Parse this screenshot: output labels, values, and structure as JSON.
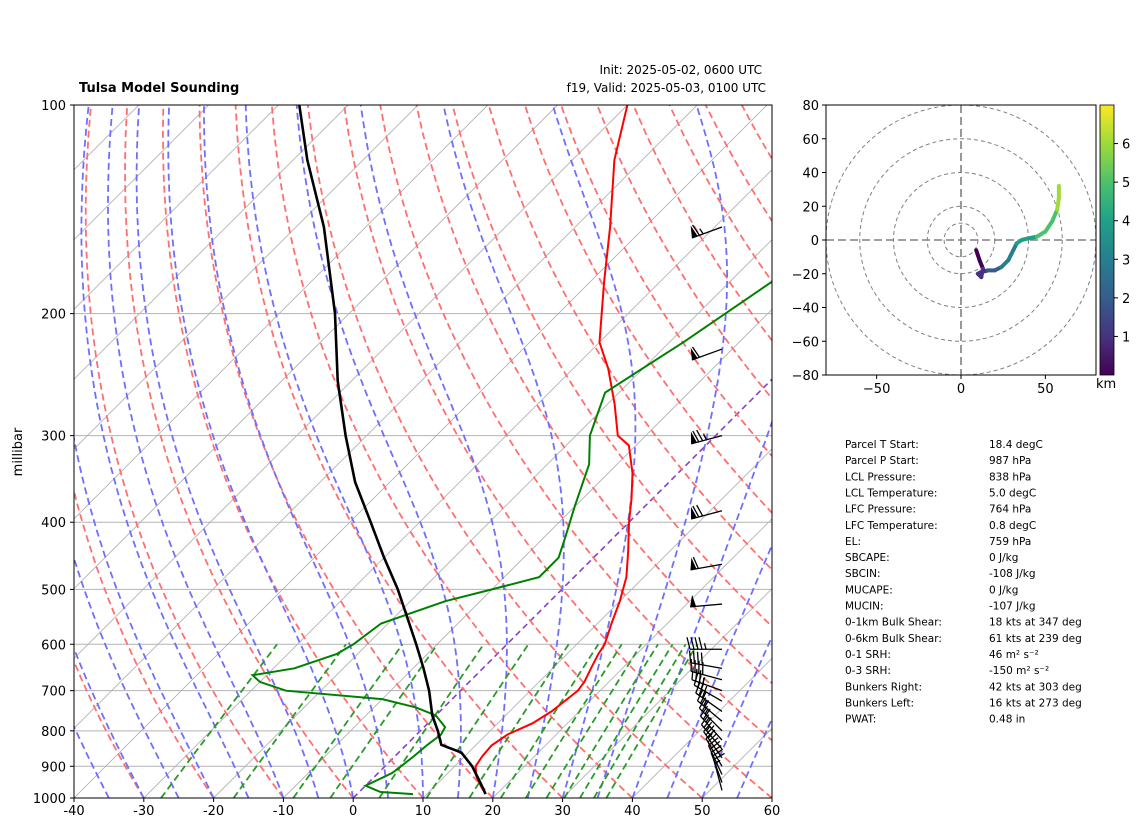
{
  "header": {
    "title": "Tulsa Model Sounding",
    "init": "Init: 2025-05-02, 0600 UTC",
    "valid": "f19, Valid: 2025-05-03, 0100 UTC"
  },
  "chart_data": [
    {
      "type": "skew-t",
      "title": "Tulsa Model Sounding",
      "ylabel": "millibar",
      "xlabel": "",
      "x_units": "degC",
      "xlim": [
        -40,
        60
      ],
      "ylim": [
        1000,
        100
      ],
      "y_scale": "log",
      "x_ticks": [
        -40,
        -30,
        -20,
        -10,
        0,
        10,
        20,
        30,
        40,
        50,
        60
      ],
      "y_ticks": [
        100,
        200,
        300,
        400,
        500,
        600,
        700,
        800,
        900,
        1000
      ],
      "grid": true,
      "colors": {
        "temperature": "#ff0000",
        "dewpoint": "#008000",
        "parcel": "#000000",
        "dry_adiabats": "#ff6f6f",
        "moist_adiabats": "#6f6fff",
        "mixing_ratio": "#2a9a2a",
        "isotherms": "#b3b3b3",
        "zero_isotherm": "#8a3fbf"
      },
      "series": [
        {
          "key": "temperature",
          "pressure": [
            987,
            960,
            930,
            900,
            870,
            840,
            810,
            780,
            750,
            720,
            700,
            680,
            650,
            620,
            600,
            560,
            520,
            480,
            440,
            400,
            370,
            340,
            310,
            300,
            270,
            240,
            220,
            180,
            150,
            120,
            100
          ],
          "values": [
            18.4,
            16.5,
            14.5,
            13,
            12.5,
            12.3,
            13,
            15,
            16,
            16.5,
            16.8,
            16.5,
            15.5,
            14.5,
            14,
            12,
            10,
            7.5,
            4,
            0,
            -3,
            -6.5,
            -11,
            -14,
            -19,
            -25,
            -30,
            -38,
            -45,
            -54,
            -60
          ]
        },
        {
          "key": "dewpoint",
          "pressure": [
            987,
            980,
            960,
            940,
            920,
            900,
            870,
            840,
            810,
            790,
            760,
            740,
            720,
            700,
            680,
            665,
            650,
            620,
            600,
            560,
            520,
            500,
            480,
            450,
            420,
            380,
            330,
            300,
            260,
            220,
            180,
            150,
            120,
            100
          ],
          "values": [
            8,
            3,
            0,
            1,
            2,
            2.3,
            2.7,
            3,
            3.5,
            3,
            0,
            -4,
            -10,
            -25,
            -30,
            -32,
            -27,
            -23,
            -22,
            -21,
            -15,
            -10,
            -5,
            -5,
            -7,
            -10,
            -14,
            -18,
            -22,
            -18,
            -14,
            -12,
            -10,
            -8
          ]
        },
        {
          "key": "parcel",
          "pressure": [
            987,
            950,
            900,
            860,
            838,
            800,
            760,
            700,
            650,
            600,
            550,
            500,
            450,
            400,
            350,
            300,
            250,
            200,
            150,
            120,
            100
          ],
          "values": [
            18.4,
            16,
            12.5,
            9,
            5,
            2.5,
            -0.5,
            -4.5,
            -8.5,
            -13,
            -18,
            -23.5,
            -30,
            -37,
            -45,
            -53,
            -62,
            -72,
            -86,
            -98,
            -107
          ]
        }
      ],
      "wind_barbs": [
        {
          "pressure": 150,
          "speed_kt": 65,
          "direction_deg": 250
        },
        {
          "pressure": 225,
          "speed_kt": 60,
          "direction_deg": 250
        },
        {
          "pressure": 300,
          "speed_kt": 75,
          "direction_deg": 255
        },
        {
          "pressure": 385,
          "speed_kt": 70,
          "direction_deg": 255
        },
        {
          "pressure": 460,
          "speed_kt": 60,
          "direction_deg": 260
        },
        {
          "pressure": 525,
          "speed_kt": 50,
          "direction_deg": 265
        },
        {
          "pressure": 610,
          "speed_kt": 45,
          "direction_deg": 270
        },
        {
          "pressure": 650,
          "speed_kt": 40,
          "direction_deg": 280
        },
        {
          "pressure": 675,
          "speed_kt": 38,
          "direction_deg": 285
        },
        {
          "pressure": 700,
          "speed_kt": 35,
          "direction_deg": 290
        },
        {
          "pressure": 725,
          "speed_kt": 30,
          "direction_deg": 300
        },
        {
          "pressure": 750,
          "speed_kt": 28,
          "direction_deg": 305
        },
        {
          "pressure": 775,
          "speed_kt": 25,
          "direction_deg": 310
        },
        {
          "pressure": 800,
          "speed_kt": 25,
          "direction_deg": 315
        },
        {
          "pressure": 825,
          "speed_kt": 25,
          "direction_deg": 318
        },
        {
          "pressure": 850,
          "speed_kt": 25,
          "direction_deg": 320
        },
        {
          "pressure": 875,
          "speed_kt": 24,
          "direction_deg": 325
        },
        {
          "pressure": 900,
          "speed_kt": 22,
          "direction_deg": 330
        },
        {
          "pressure": 925,
          "speed_kt": 20,
          "direction_deg": 335
        },
        {
          "pressure": 950,
          "speed_kt": 18,
          "direction_deg": 340
        },
        {
          "pressure": 975,
          "speed_kt": 15,
          "direction_deg": 345
        }
      ]
    },
    {
      "type": "hodograph",
      "title": "",
      "xlim": [
        -80,
        80
      ],
      "ylim": [
        -80,
        80
      ],
      "x_ticks": [
        -50,
        0,
        50
      ],
      "y_ticks": [
        80,
        60,
        40,
        20,
        0,
        -20,
        -40,
        -60,
        -80
      ],
      "rings": [
        10,
        20,
        40,
        60,
        80
      ],
      "colorbar": {
        "label": "km",
        "ticks": [
          1,
          2,
          3,
          4,
          5,
          6
        ],
        "range": [
          0,
          7
        ],
        "colormap": "viridis"
      },
      "series": [
        {
          "name": "",
          "u": [
            9,
            11,
            13,
            12,
            10,
            12,
            16,
            20,
            24,
            28,
            31,
            33,
            36,
            40,
            45,
            50,
            54,
            57,
            58,
            58
          ],
          "v": [
            -6,
            -12,
            -17,
            -22,
            -20,
            -19,
            -18,
            -18,
            -16,
            -12,
            -6,
            -2,
            0,
            1,
            2,
            5,
            11,
            18,
            25,
            32
          ],
          "height_km": [
            0.0,
            0.3,
            0.6,
            0.9,
            1.1,
            1.3,
            1.6,
            2.0,
            2.4,
            2.8,
            3.2,
            3.5,
            3.8,
            4.1,
            4.4,
            4.8,
            5.2,
            5.6,
            6.0,
            6.4
          ]
        }
      ]
    }
  ],
  "stats": [
    {
      "label": "Parcel T Start:",
      "value": "18.4 degC"
    },
    {
      "label": "Parcel P Start:",
      "value": "987 hPa"
    },
    {
      "label": "LCL Pressure:",
      "value": "838 hPa"
    },
    {
      "label": "LCL Temperature:",
      "value": "5.0 degC"
    },
    {
      "label": "LFC Pressure:",
      "value": "764 hPa"
    },
    {
      "label": "LFC Temperature:",
      "value": "0.8 degC"
    },
    {
      "label": "EL:",
      "value": "759 hPa"
    },
    {
      "label": "SBCAPE:",
      "value": "0 J/kg"
    },
    {
      "label": "SBCIN:",
      "value": "-108 J/kg"
    },
    {
      "label": "MUCAPE:",
      "value": "0 J/kg"
    },
    {
      "label": "MUCIN:",
      "value": "-107 J/kg"
    },
    {
      "label": "0-1km Bulk Shear:",
      "value": "18 kts at 347 deg"
    },
    {
      "label": "0-6km Bulk Shear:",
      "value": "61 kts at 239 deg"
    },
    {
      "label": "0-1 SRH:",
      "value": "46 m² s⁻²"
    },
    {
      "label": "0-3 SRH:",
      "value": "-150 m² s⁻²"
    },
    {
      "label": "Bunkers Right:",
      "value": "42 kts at 303 deg"
    },
    {
      "label": "Bunkers Left:",
      "value": "16 kts at 273 deg"
    },
    {
      "label": "PWAT:",
      "value": "0.48 in"
    }
  ]
}
